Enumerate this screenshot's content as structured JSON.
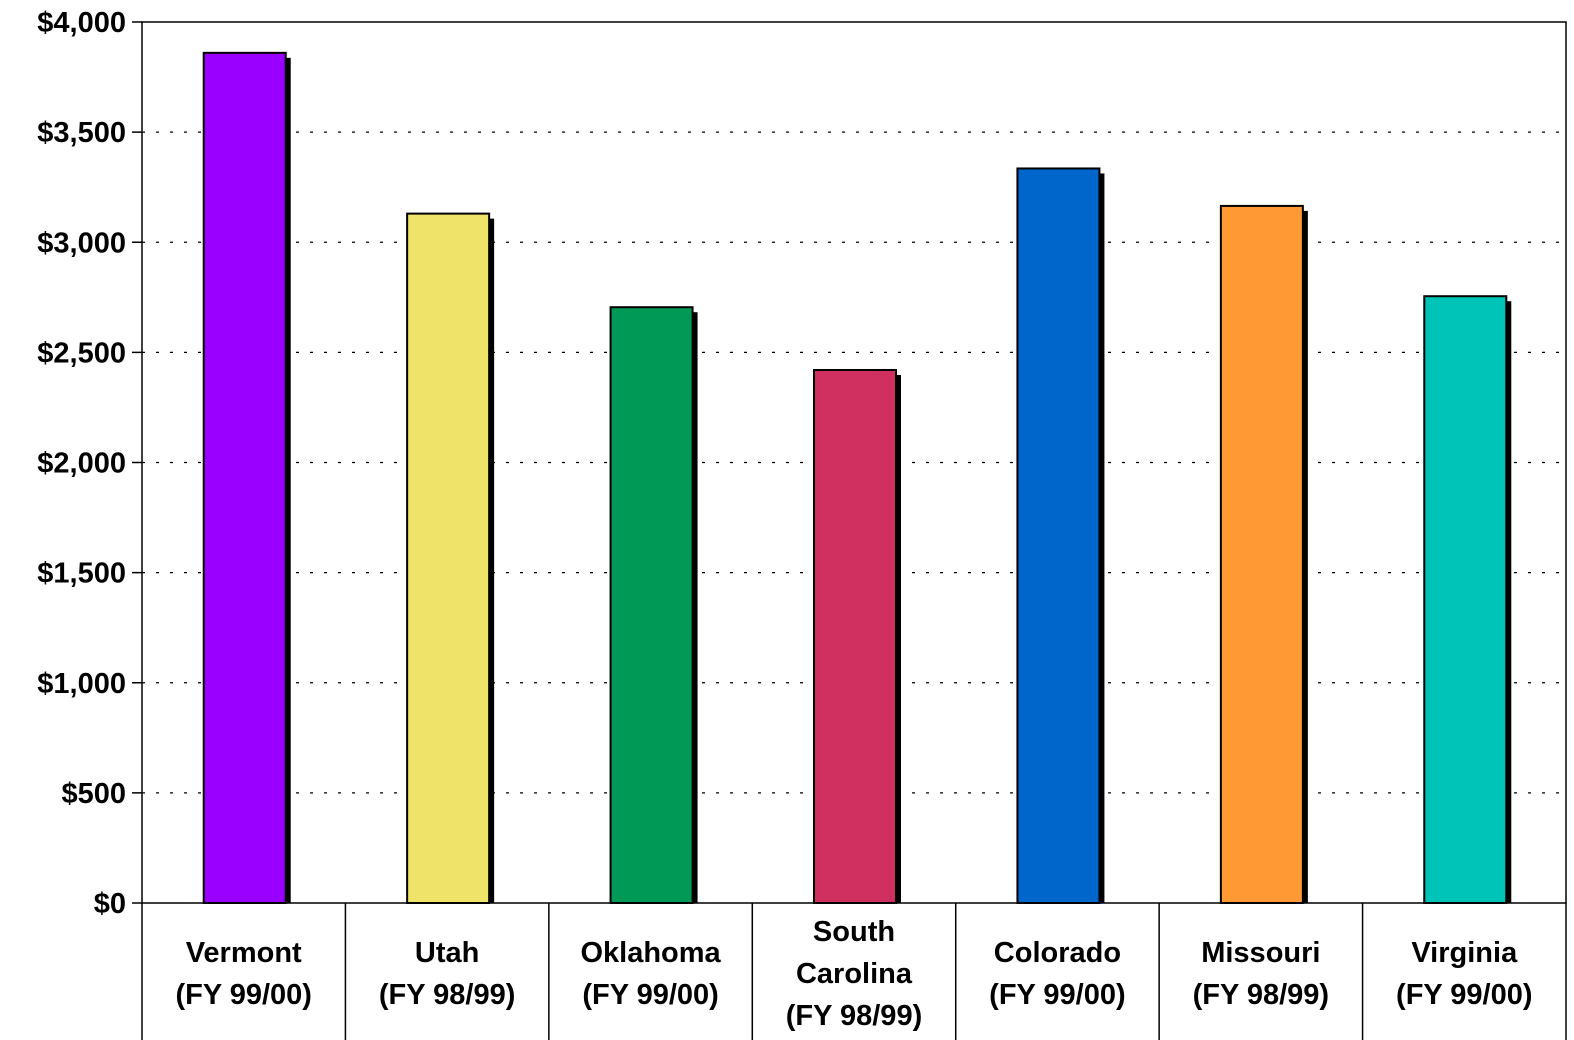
{
  "chart_data": {
    "type": "bar",
    "categories": [
      [
        "Vermont",
        "(FY 99/00)"
      ],
      [
        "Utah",
        "(FY 98/99)"
      ],
      [
        "Oklahoma",
        "(FY 99/00)"
      ],
      [
        "South",
        "Carolina",
        "(FY 98/99)"
      ],
      [
        "Colorado",
        "(FY 99/00)"
      ],
      [
        "Missouri",
        "(FY 98/99)"
      ],
      [
        "Virginia",
        "(FY 99/00)"
      ]
    ],
    "values": [
      3860,
      3130,
      2705,
      2420,
      3335,
      3165,
      2755
    ],
    "colors": [
      "#9900FF",
      "#F0E36A",
      "#009955",
      "#D03060",
      "#0066CC",
      "#FF9933",
      "#00C4B8"
    ],
    "ylim": [
      0,
      4000
    ],
    "yticks": [
      0,
      500,
      1000,
      1500,
      2000,
      2500,
      3000,
      3500,
      4000
    ],
    "ytick_labels": [
      "$0",
      "$500",
      "$1,000",
      "$1,500",
      "$2,000",
      "$2,500",
      "$3,000",
      "$3,500",
      "$4,000"
    ],
    "grid": true,
    "title": "",
    "xlabel": "",
    "ylabel": ""
  }
}
